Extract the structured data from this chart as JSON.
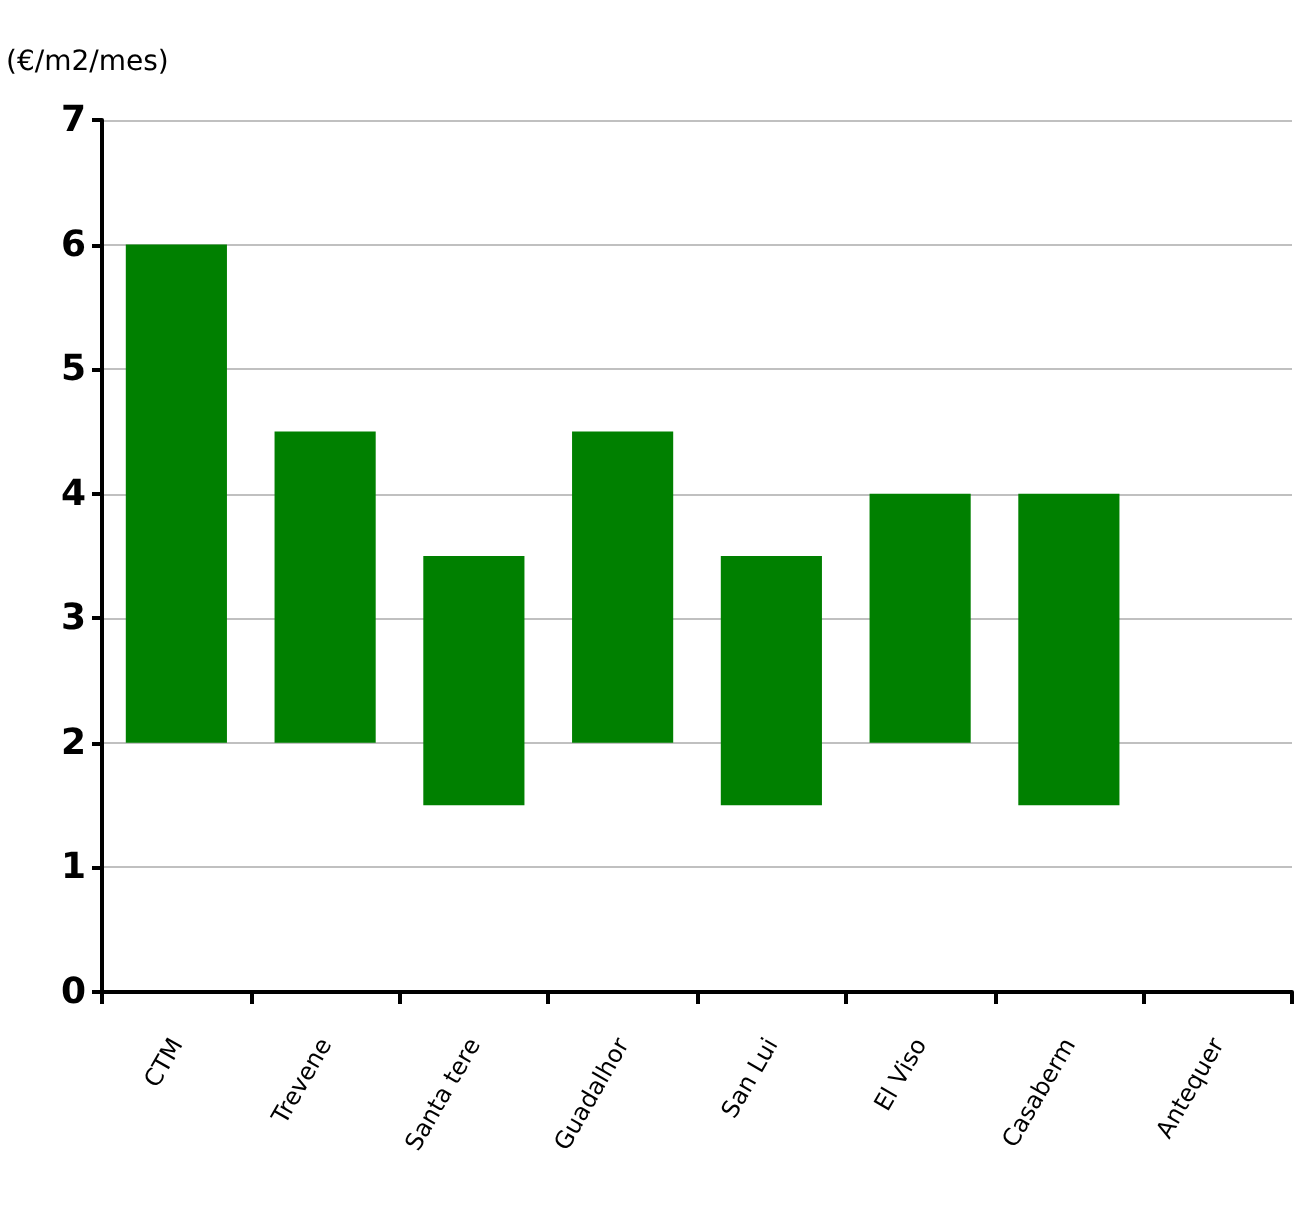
{
  "chart_data": {
    "type": "bar",
    "ylabel": "(€/m2/mes)",
    "categories": [
      "CTM",
      "Trevene",
      "Santa tere",
      "Guadalhor",
      "San Lui",
      "El Viso",
      "Casaberm",
      "Antequer"
    ],
    "base": [
      2,
      2,
      1.5,
      2,
      1.5,
      2,
      1.5,
      null
    ],
    "values": [
      4,
      2.5,
      2,
      2.5,
      2,
      2,
      2.5,
      null
    ],
    "color": "#008000",
    "ylim": [
      0,
      7
    ],
    "yticks": [
      0,
      1,
      2,
      3,
      4,
      5,
      6,
      7
    ],
    "grid": "y"
  }
}
